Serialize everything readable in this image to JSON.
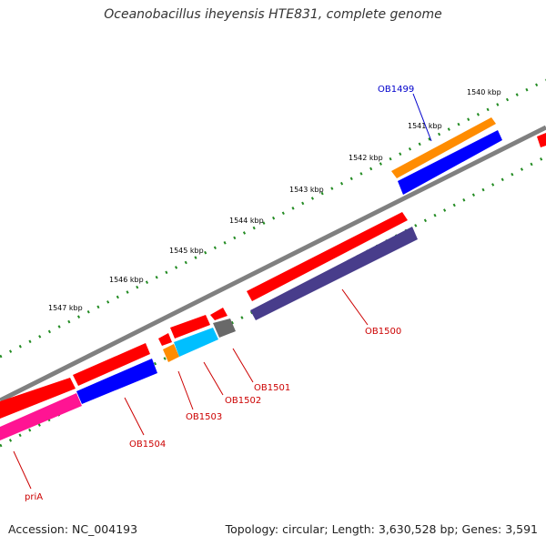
{
  "title": "Oceanobacillus iheyensis HTE831, complete genome",
  "footer": {
    "accession": "Accession: NC_004193",
    "summary": "Topology: circular; Length: 3,630,528 bp; Genes: 3,591"
  },
  "colors": {
    "backbone": "#808080",
    "tick": "#228b22",
    "label_red": "#cc0000",
    "label_blue": "#0000cc",
    "red": "#ff0000",
    "blue": "#0000ff",
    "orange": "#ff8c00",
    "purple": "#483d8b",
    "pink": "#ff1493",
    "cyan": "#00bfff",
    "gray": "#696969"
  },
  "scale_labels": [
    "1540 kbp",
    "1541 kbp",
    "1542 kbp",
    "1543 kbp",
    "1544 kbp",
    "1545 kbp",
    "1546 kbp",
    "1547 kbp"
  ],
  "gene_labels": [
    {
      "name": "OB1499",
      "color": "label_blue"
    },
    {
      "name": "OB1500",
      "color": "label_red"
    },
    {
      "name": "OB1501",
      "color": "label_red"
    },
    {
      "name": "OB1502",
      "color": "label_red"
    },
    {
      "name": "OB1503",
      "color": "label_red"
    },
    {
      "name": "OB1504",
      "color": "label_red"
    },
    {
      "name": "priA",
      "color": "label_red"
    }
  ]
}
